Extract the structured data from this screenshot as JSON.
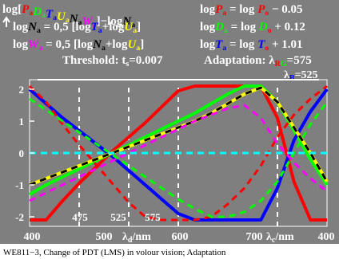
{
  "colors": {
    "background": "#7f7f7f",
    "text": "#ffffff",
    "P": "#ff0000",
    "D": "#00ff00",
    "T": "#0000ff",
    "U": "#ffff00",
    "N": "#000000",
    "W": "#ff00ff",
    "R": "#ff0000",
    "B": "#0000ff",
    "O": "#ff0000",
    "zero": "#00ffff"
  },
  "header": {
    "l1_left": [
      "log[",
      "P",
      "a",
      "D",
      "a",
      "T",
      "a",
      "U",
      "a",
      "N",
      "a",
      "W",
      "a",
      "]−log",
      "N",
      "a"
    ],
    "l1_right": [
      "log",
      "P",
      "a",
      " = log ",
      "P",
      "o",
      " − 0.05"
    ],
    "l2_left": [
      "log",
      "N",
      "a",
      " = 0,5 [log",
      "T",
      "a",
      "+log",
      "U",
      "a",
      "]"
    ],
    "l2_right": [
      "log",
      "D",
      "a",
      " = log ",
      "D",
      "o",
      " + 0.12"
    ],
    "l3_left": [
      "log",
      "W",
      "a",
      " = 0,5 [log",
      "N",
      "a",
      "+log",
      "U",
      "a",
      "]"
    ],
    "l3_right": [
      "log",
      "T",
      "a",
      " = log ",
      "T",
      "o",
      " + 1.01"
    ],
    "threshold_label": "Threshold: t",
    "threshold_sub": "s",
    "threshold_value": "=0.007",
    "adaptation_label": "Adaptation: λ",
    "adaptation_sub_r": "R",
    "adaptation_sub_g": "G",
    "adaptation_value_r": "=575",
    "lambda_b_label": "λ",
    "lambda_b_sub": "B",
    "lambda_b_value": "=525"
  },
  "axis": {
    "bottom_labels": [
      "400",
      "500",
      "600",
      "700",
      "400"
    ],
    "xlabel_d": "λ",
    "xlabel_d_sub": "d",
    "xlabel_d_unit": "/nm",
    "xlabel_c": "λ",
    "xlabel_c_sub": "c",
    "xlabel_c_unit": "/nm",
    "inner_labels": [
      "475",
      "525",
      "575"
    ]
  },
  "caption": "WE811−3, Change of PDT (LMS) in volour vision; Adaptation",
  "chart_data": {
    "type": "line",
    "y_ticks": [
      -2,
      -1,
      0,
      1,
      2
    ],
    "ylim": [
      -2.3,
      2.3
    ],
    "x": [
      0,
      1,
      2,
      3,
      4,
      5,
      6,
      7,
      8,
      9,
      10,
      11,
      12,
      13,
      14,
      15,
      16,
      17,
      18
    ],
    "series": [
      {
        "color": "#ff0000",
        "dash": false,
        "values": [
          -2.1,
          -2.1,
          -1.5,
          -0.95,
          -0.45,
          0.05,
          0.5,
          0.95,
          1.45,
          1.95,
          2.1,
          2.1,
          2.1,
          2.1,
          2.1,
          1.1,
          -0.9,
          -2.1,
          -2.1
        ]
      },
      {
        "color": "#00ff00",
        "dash": false,
        "values": [
          -1.3,
          -1.0,
          -0.75,
          -0.5,
          -0.25,
          0.0,
          0.25,
          0.5,
          0.75,
          1.0,
          1.25,
          1.55,
          1.85,
          2.1,
          2.1,
          1.6,
          0.7,
          -0.2,
          -1.0
        ]
      },
      {
        "color": "#0000ff",
        "dash": false,
        "values": [
          2.0,
          1.55,
          1.1,
          0.7,
          0.3,
          -0.1,
          -0.55,
          -1.0,
          -1.45,
          -1.9,
          -2.1,
          -2.1,
          -2.1,
          -2.1,
          -2.1,
          -1.1,
          0.4,
          1.3,
          2.0
        ]
      },
      {
        "color": "#ffff00",
        "dash": false,
        "values": [
          -1.0,
          -0.8,
          -0.6,
          -0.4,
          -0.2,
          0.0,
          0.2,
          0.4,
          0.6,
          0.8,
          1.0,
          1.25,
          1.55,
          1.85,
          2.05,
          1.6,
          0.8,
          0.0,
          -0.9
        ]
      },
      {
        "color": "#000000",
        "dash": true,
        "values": [
          -1.0,
          -0.8,
          -0.6,
          -0.4,
          -0.2,
          0.0,
          0.2,
          0.4,
          0.6,
          0.8,
          1.0,
          1.25,
          1.55,
          1.85,
          2.05,
          1.6,
          0.8,
          0.0,
          -0.9
        ]
      },
      {
        "color": "#ff0000",
        "dash": true,
        "values": [
          2.1,
          1.6,
          0.9,
          0.25,
          -0.35,
          -0.95,
          -1.55,
          -2.0,
          -2.1,
          -2.1,
          -2.1,
          -2.0,
          -1.6,
          -1.1,
          -0.4,
          0.5,
          1.2,
          1.7,
          2.1
        ]
      },
      {
        "color": "#00ff00",
        "dash": true,
        "values": [
          1.7,
          1.35,
          1.0,
          0.65,
          0.3,
          -0.05,
          -0.4,
          -0.75,
          -1.1,
          -1.45,
          -1.75,
          -2.0,
          -2.0,
          -1.85,
          -1.5,
          -0.9,
          0.0,
          0.9,
          1.6
        ]
      },
      {
        "color": "#ff00ff",
        "dash": true,
        "values": [
          -1.5,
          -1.25,
          -1.0,
          -0.75,
          -0.5,
          -0.25,
          0.0,
          0.25,
          0.5,
          0.75,
          1.0,
          1.2,
          1.4,
          1.5,
          1.1,
          0.3,
          -0.3,
          -0.8,
          -1.2
        ]
      },
      {
        "color": "#00ffff",
        "dash": true,
        "values": [
          0,
          0,
          0,
          0,
          0,
          0,
          0,
          0,
          0,
          0,
          0,
          0,
          0,
          0,
          0,
          0,
          0,
          0,
          0
        ]
      }
    ]
  }
}
